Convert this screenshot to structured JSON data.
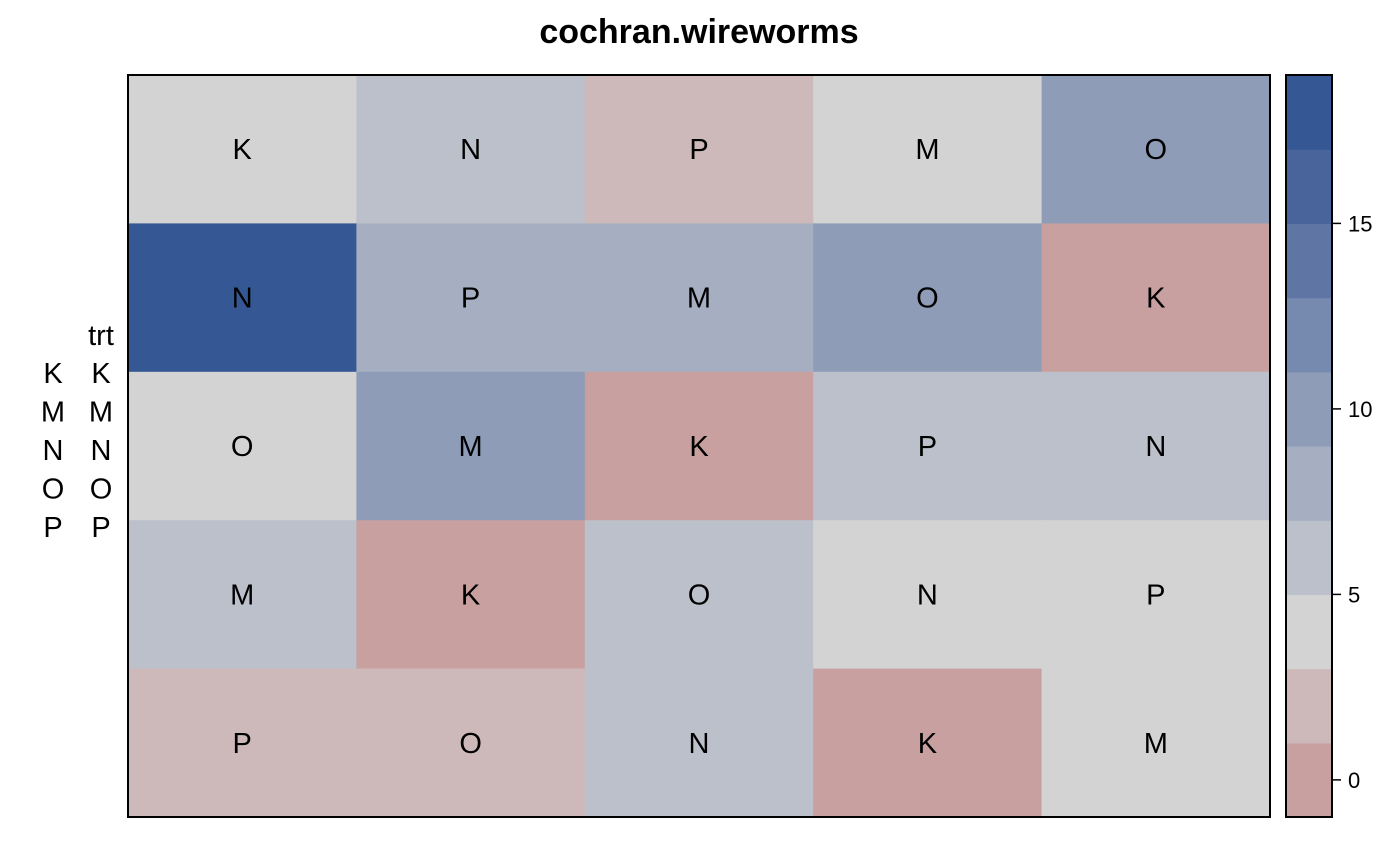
{
  "chart_data": {
    "type": "heatmap",
    "title": "cochran.wireworms",
    "rows": 5,
    "cols": 5,
    "labels": [
      [
        "K",
        "N",
        "P",
        "M",
        "O"
      ],
      [
        "N",
        "P",
        "M",
        "O",
        "K"
      ],
      [
        "O",
        "M",
        "K",
        "P",
        "N"
      ],
      [
        "M",
        "K",
        "O",
        "N",
        "P"
      ],
      [
        "P",
        "O",
        "N",
        "K",
        "M"
      ]
    ],
    "values": [
      [
        3,
        5,
        2,
        3,
        9
      ],
      [
        17,
        8,
        8,
        10,
        0
      ],
      [
        4,
        10,
        0,
        6,
        6
      ],
      [
        6,
        0,
        6,
        4,
        4
      ],
      [
        2,
        2,
        6,
        0,
        4
      ]
    ],
    "legend_groups": [
      {
        "title": "",
        "items": [
          "K",
          "M",
          "N",
          "O",
          "P"
        ]
      },
      {
        "title": "trt",
        "items": [
          "K",
          "M",
          "N",
          "O",
          "P"
        ]
      }
    ],
    "colorbar": {
      "min": -1,
      "max": 19,
      "ticks": [
        0,
        5,
        10,
        15
      ],
      "bins": [
        {
          "from": -1,
          "to": 1,
          "color": "#c8a0a0"
        },
        {
          "from": 1,
          "to": 3,
          "color": "#cdb9b9"
        },
        {
          "from": 3,
          "to": 5,
          "color": "#d3d3d3"
        },
        {
          "from": 5,
          "to": 7,
          "color": "#bcc0ca"
        },
        {
          "from": 7,
          "to": 9,
          "color": "#a5afc1"
        },
        {
          "from": 9,
          "to": 11,
          "color": "#8e9cb7"
        },
        {
          "from": 11,
          "to": 13,
          "color": "#7689ae"
        },
        {
          "from": 13,
          "to": 15,
          "color": "#5f76a5"
        },
        {
          "from": 15,
          "to": 17,
          "color": "#48649b"
        },
        {
          "from": 17,
          "to": 19,
          "color": "#355895"
        }
      ]
    }
  }
}
